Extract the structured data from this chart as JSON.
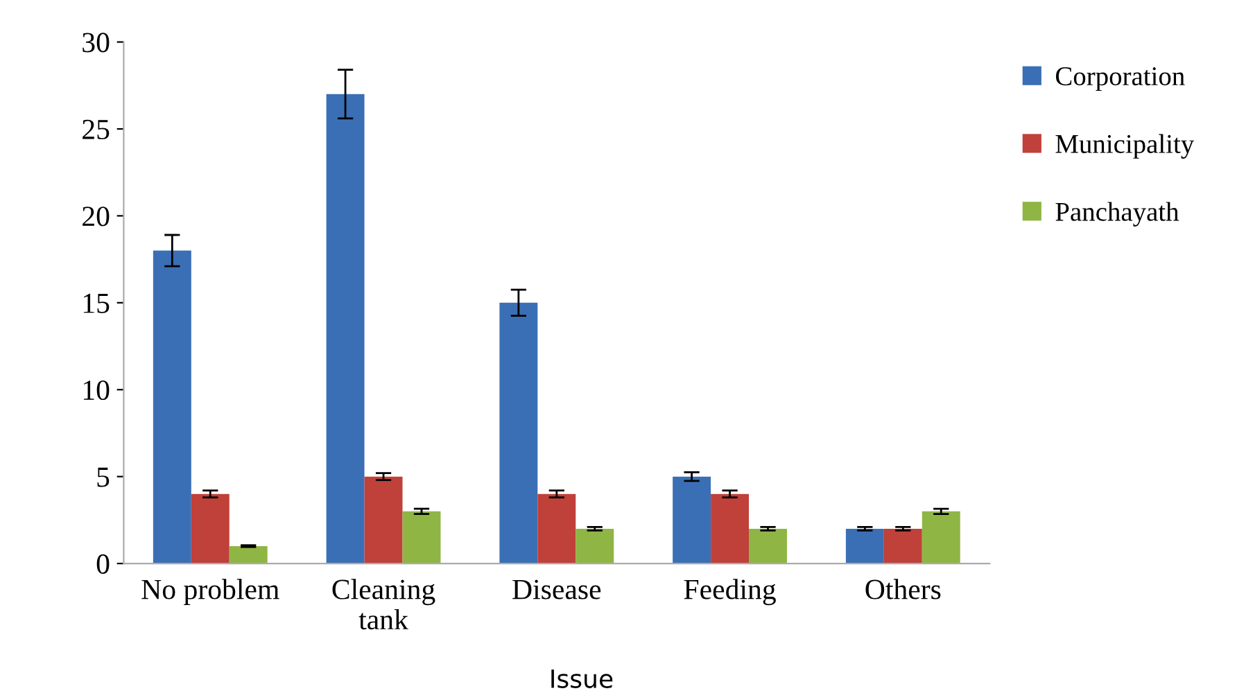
{
  "chart_data": {
    "type": "bar",
    "xlabel": "Issue",
    "categories": [
      "No problem",
      "Cleaning\ntank",
      "Disease",
      "Feeding",
      "Others"
    ],
    "series": [
      {
        "name": "Corporation",
        "color": "#3a6fb5",
        "values": [
          18,
          27,
          15,
          5,
          2
        ],
        "errors": [
          0.9,
          1.4,
          0.75,
          0.25,
          0.1
        ]
      },
      {
        "name": "Municipality",
        "color": "#c0403a",
        "values": [
          4,
          5,
          4,
          4,
          2
        ],
        "errors": [
          0.2,
          0.2,
          0.2,
          0.2,
          0.1
        ]
      },
      {
        "name": "Panchayath",
        "color": "#8fb545",
        "values": [
          1,
          3,
          2,
          2,
          3
        ],
        "errors": [
          0.05,
          0.15,
          0.1,
          0.1,
          0.15
        ]
      }
    ],
    "ylim": [
      0,
      30
    ],
    "yticks": [
      0,
      5,
      10,
      15,
      20,
      25,
      30
    ],
    "grid": false,
    "legend": "right"
  }
}
